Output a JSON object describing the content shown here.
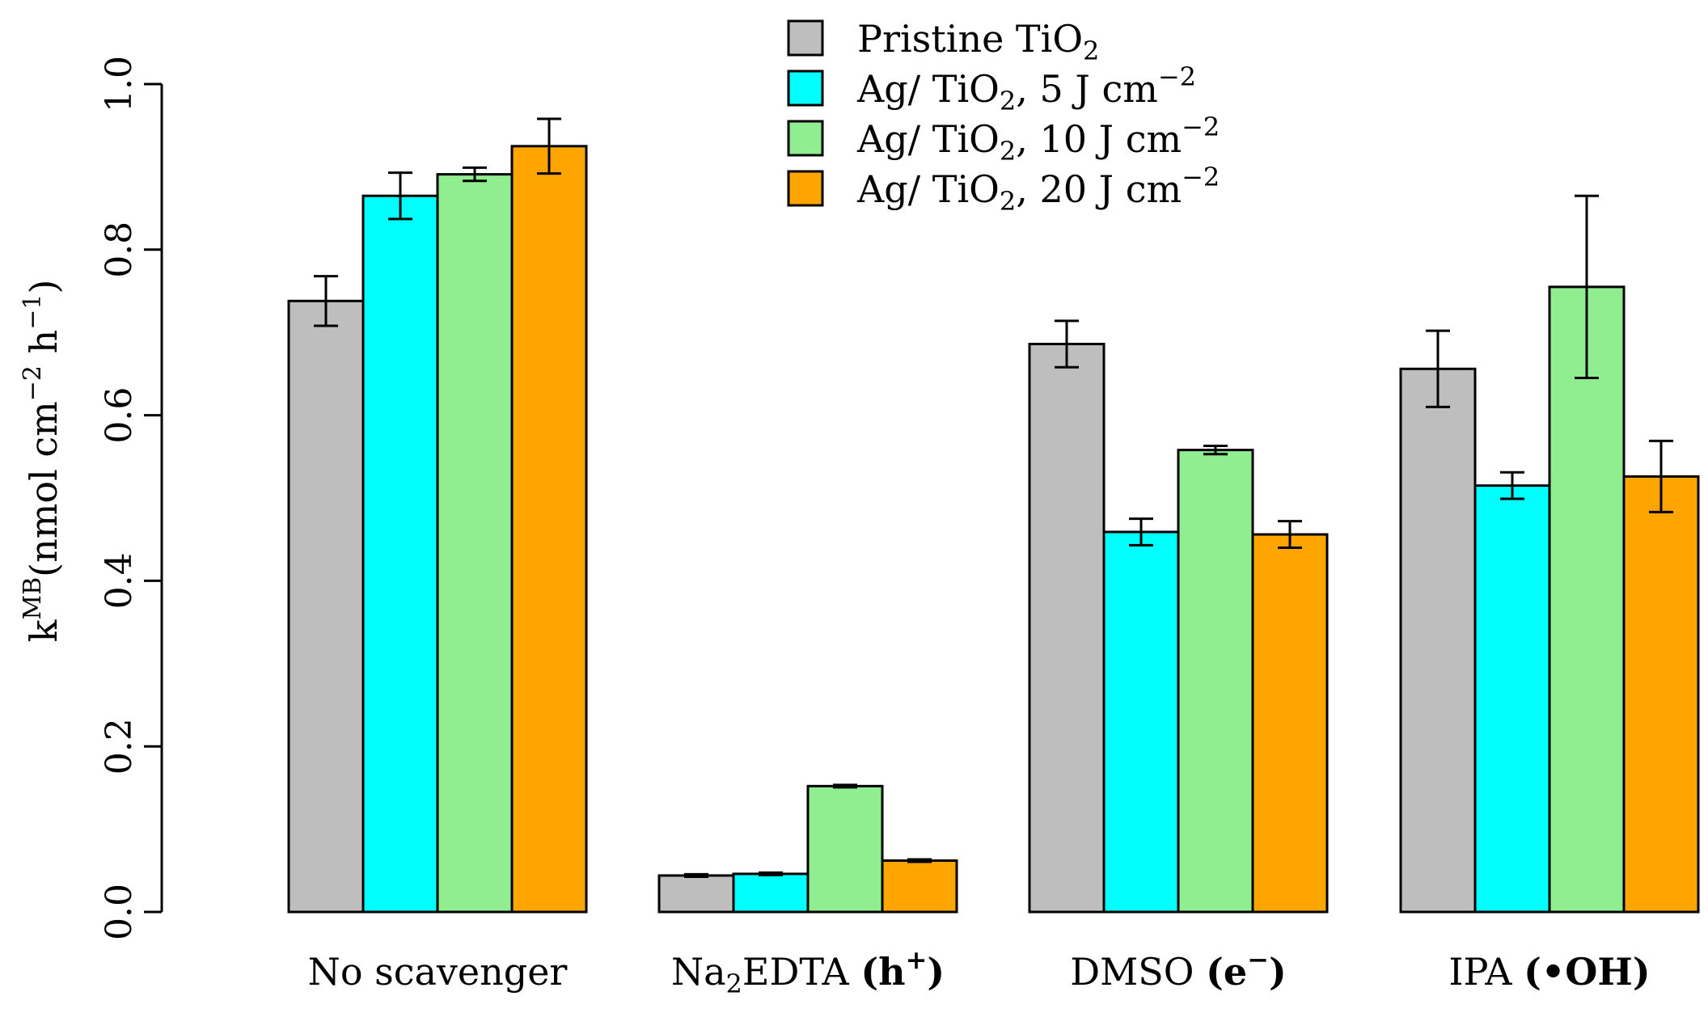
{
  "chart_data": {
    "type": "bar",
    "ylabel": {
      "base": "k",
      "sup": "MB",
      "rest": "(nmol cm",
      "sup2": "−2",
      "mid": " h",
      "sup3": "−1",
      "end": ")"
    },
    "ylim": [
      0,
      1.0
    ],
    "yticks": [
      "0.0",
      "0.2",
      "0.4",
      "0.6",
      "0.8",
      "1.0"
    ],
    "categories": [
      {
        "plain": "No scavenger",
        "sub": "",
        "plain2": "",
        "bold": "",
        "sup": "",
        "boldend": ""
      },
      {
        "plain": "Na",
        "sub": "2",
        "plain2": "EDTA ",
        "bold": "(h",
        "sup": "+",
        "boldend": ")"
      },
      {
        "plain": "DMSO ",
        "sub": "",
        "plain2": "",
        "bold": "(e",
        "sup": "−",
        "boldend": ")"
      },
      {
        "plain": "IPA ",
        "sub": "",
        "plain2": "",
        "bold": "(•OH)",
        "sup": "",
        "boldend": ""
      }
    ],
    "series": [
      {
        "name": "Pristine TiO2",
        "legend": {
          "text": "Pristine TiO",
          "sub": "2",
          "rest": "",
          "sup": ""
        },
        "color": "#bebebe",
        "values": [
          0.738,
          0.044,
          0.686,
          0.656
        ],
        "errors": [
          0.03,
          0.0015,
          0.028,
          0.046
        ]
      },
      {
        "name": "Ag/ TiO2, 5 J cm−2",
        "legend": {
          "text": "Ag/ TiO",
          "sub": "2",
          "rest": ", 5 J cm",
          "sup": "−2"
        },
        "color": "#00ffff",
        "values": [
          0.865,
          0.046,
          0.459,
          0.515
        ],
        "errors": [
          0.028,
          0.0015,
          0.016,
          0.016
        ]
      },
      {
        "name": "Ag/ TiO2, 10 J cm−2",
        "legend": {
          "text": "Ag/ TiO",
          "sub": "2",
          "rest": ", 10 J cm",
          "sup": "−2"
        },
        "color": "#90ee90",
        "values": [
          0.891,
          0.152,
          0.558,
          0.755
        ],
        "errors": [
          0.008,
          0.0015,
          0.005,
          0.11
        ]
      },
      {
        "name": "Ag/ TiO2, 20 J cm−2",
        "legend": {
          "text": "Ag/ TiO",
          "sub": "2",
          "rest": ", 20 J cm",
          "sup": "−2"
        },
        "color": "#ffa500",
        "values": [
          0.925,
          0.062,
          0.456,
          0.526
        ],
        "errors": [
          0.033,
          0.0015,
          0.016,
          0.043
        ]
      }
    ],
    "grid": false,
    "legend_position": "top-center"
  }
}
